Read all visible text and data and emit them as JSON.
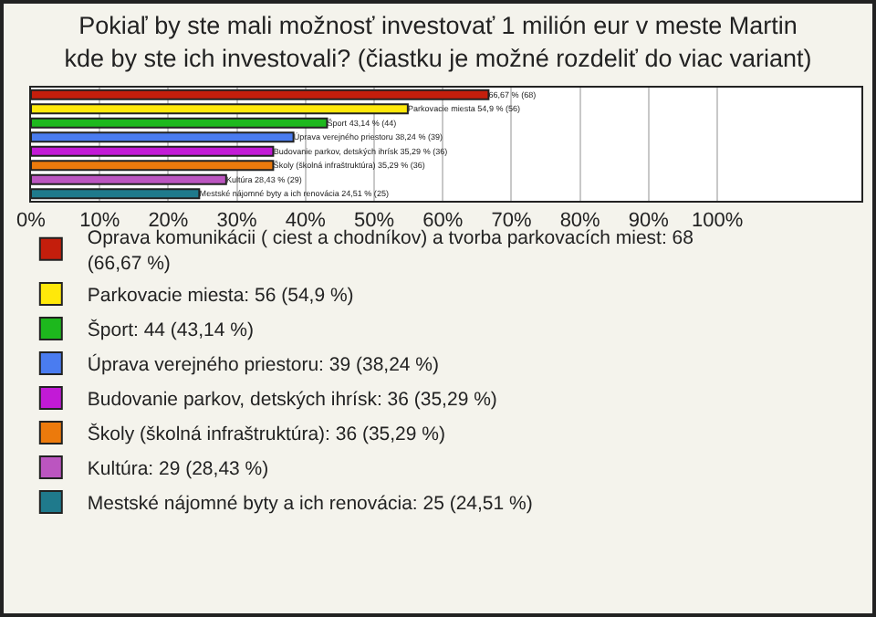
{
  "chart_data": {
    "type": "bar",
    "orientation": "horizontal",
    "title": "Pokiaľ by ste mali možnosť investovať 1 milión eur v meste Martin kde by ste ich investovali? (čiastku je možné rozdeliť do viac variant)",
    "categories": [
      null,
      null,
      null,
      null,
      null,
      null,
      null,
      null
    ],
    "series": [
      {
        "name": "Oprava komunikácii ( ciest a chodníkov) a tvorba parkovacích miest: 68 (66,67 %)",
        "color": "#c41e0c",
        "values": [
          66.67,
          null,
          null,
          null,
          null,
          null,
          null,
          null
        ],
        "value_labels": [
          "66,67 % (68)",
          null,
          null,
          null,
          null,
          null,
          null,
          null
        ]
      },
      {
        "name": "Parkovacie miesta: 56 (54,9 %)",
        "color": "#ffe80a",
        "values": [
          null,
          54.9,
          null,
          null,
          null,
          null,
          null,
          null
        ],
        "value_labels": [
          null,
          "Parkovacie miesta 54,9 % (56)",
          null,
          null,
          null,
          null,
          null,
          null
        ]
      },
      {
        "name": "Šport: 44 (43,14 %)",
        "color": "#1db81d",
        "values": [
          null,
          null,
          43.14,
          null,
          null,
          null,
          null,
          null
        ],
        "value_labels": [
          null,
          null,
          "Šport 43,14 % (44)",
          null,
          null,
          null,
          null,
          null
        ]
      },
      {
        "name": "Úprava verejného priestoru: 39 (38,24 %)",
        "color": "#4a7cf0",
        "values": [
          null,
          null,
          null,
          38.24,
          null,
          null,
          null,
          null
        ],
        "value_labels": [
          null,
          null,
          null,
          "Úprava verejného priestoru 38,24 % (39)",
          null,
          null,
          null,
          null
        ]
      },
      {
        "name": "Budovanie parkov, detských ihrísk: 36 (35,29 %)",
        "color": "#c21ad6",
        "values": [
          null,
          null,
          null,
          null,
          35.29,
          null,
          null,
          null
        ],
        "value_labels": [
          null,
          null,
          null,
          null,
          "Budovanie parkov, detských ihrísk 35,29 % (36)",
          null,
          null,
          null
        ]
      },
      {
        "name": "Školy (školná infraštruktúra): 36 (35,29 %)",
        "color": "#ec7a0c",
        "values": [
          null,
          null,
          null,
          null,
          null,
          35.29,
          null,
          null
        ],
        "value_labels": [
          null,
          null,
          null,
          null,
          null,
          "Školy (školná infraštruktúra) 35,29 % (36)",
          null,
          null
        ]
      },
      {
        "name": "Kultúra: 29 (28,43 %)",
        "color": "#bb55c0",
        "values": [
          null,
          null,
          null,
          null,
          null,
          null,
          28.43,
          null
        ],
        "value_labels": [
          null,
          null,
          null,
          null,
          null,
          null,
          "Kultúra 28,43 % (29)",
          null
        ]
      },
      {
        "name": "Mestské nájomné byty a ich renovácia: 25 (24,51 %)",
        "color": "#1f7a8c",
        "values": [
          null,
          null,
          null,
          null,
          null,
          null,
          null,
          24.51
        ],
        "value_labels": [
          null,
          null,
          null,
          null,
          null,
          null,
          null,
          "Mestské nájomné byty a ich renovácia 24,51 % (25)"
        ]
      }
    ],
    "xlim": [
      0,
      121
    ],
    "xticks": [
      {
        "value": 0,
        "label": "0%"
      },
      {
        "value": 10,
        "label": "10%"
      },
      {
        "value": 20,
        "label": "20%"
      },
      {
        "value": 30,
        "label": "30%"
      },
      {
        "value": 40,
        "label": "40%"
      },
      {
        "value": 50,
        "label": "50%"
      },
      {
        "value": 60,
        "label": "60%"
      },
      {
        "value": 70,
        "label": "70%"
      },
      {
        "value": 80,
        "label": "80%"
      },
      {
        "value": 90,
        "label": "90%"
      },
      {
        "value": 100,
        "label": "100%"
      }
    ],
    "grid": "x",
    "legend": "bottom"
  }
}
